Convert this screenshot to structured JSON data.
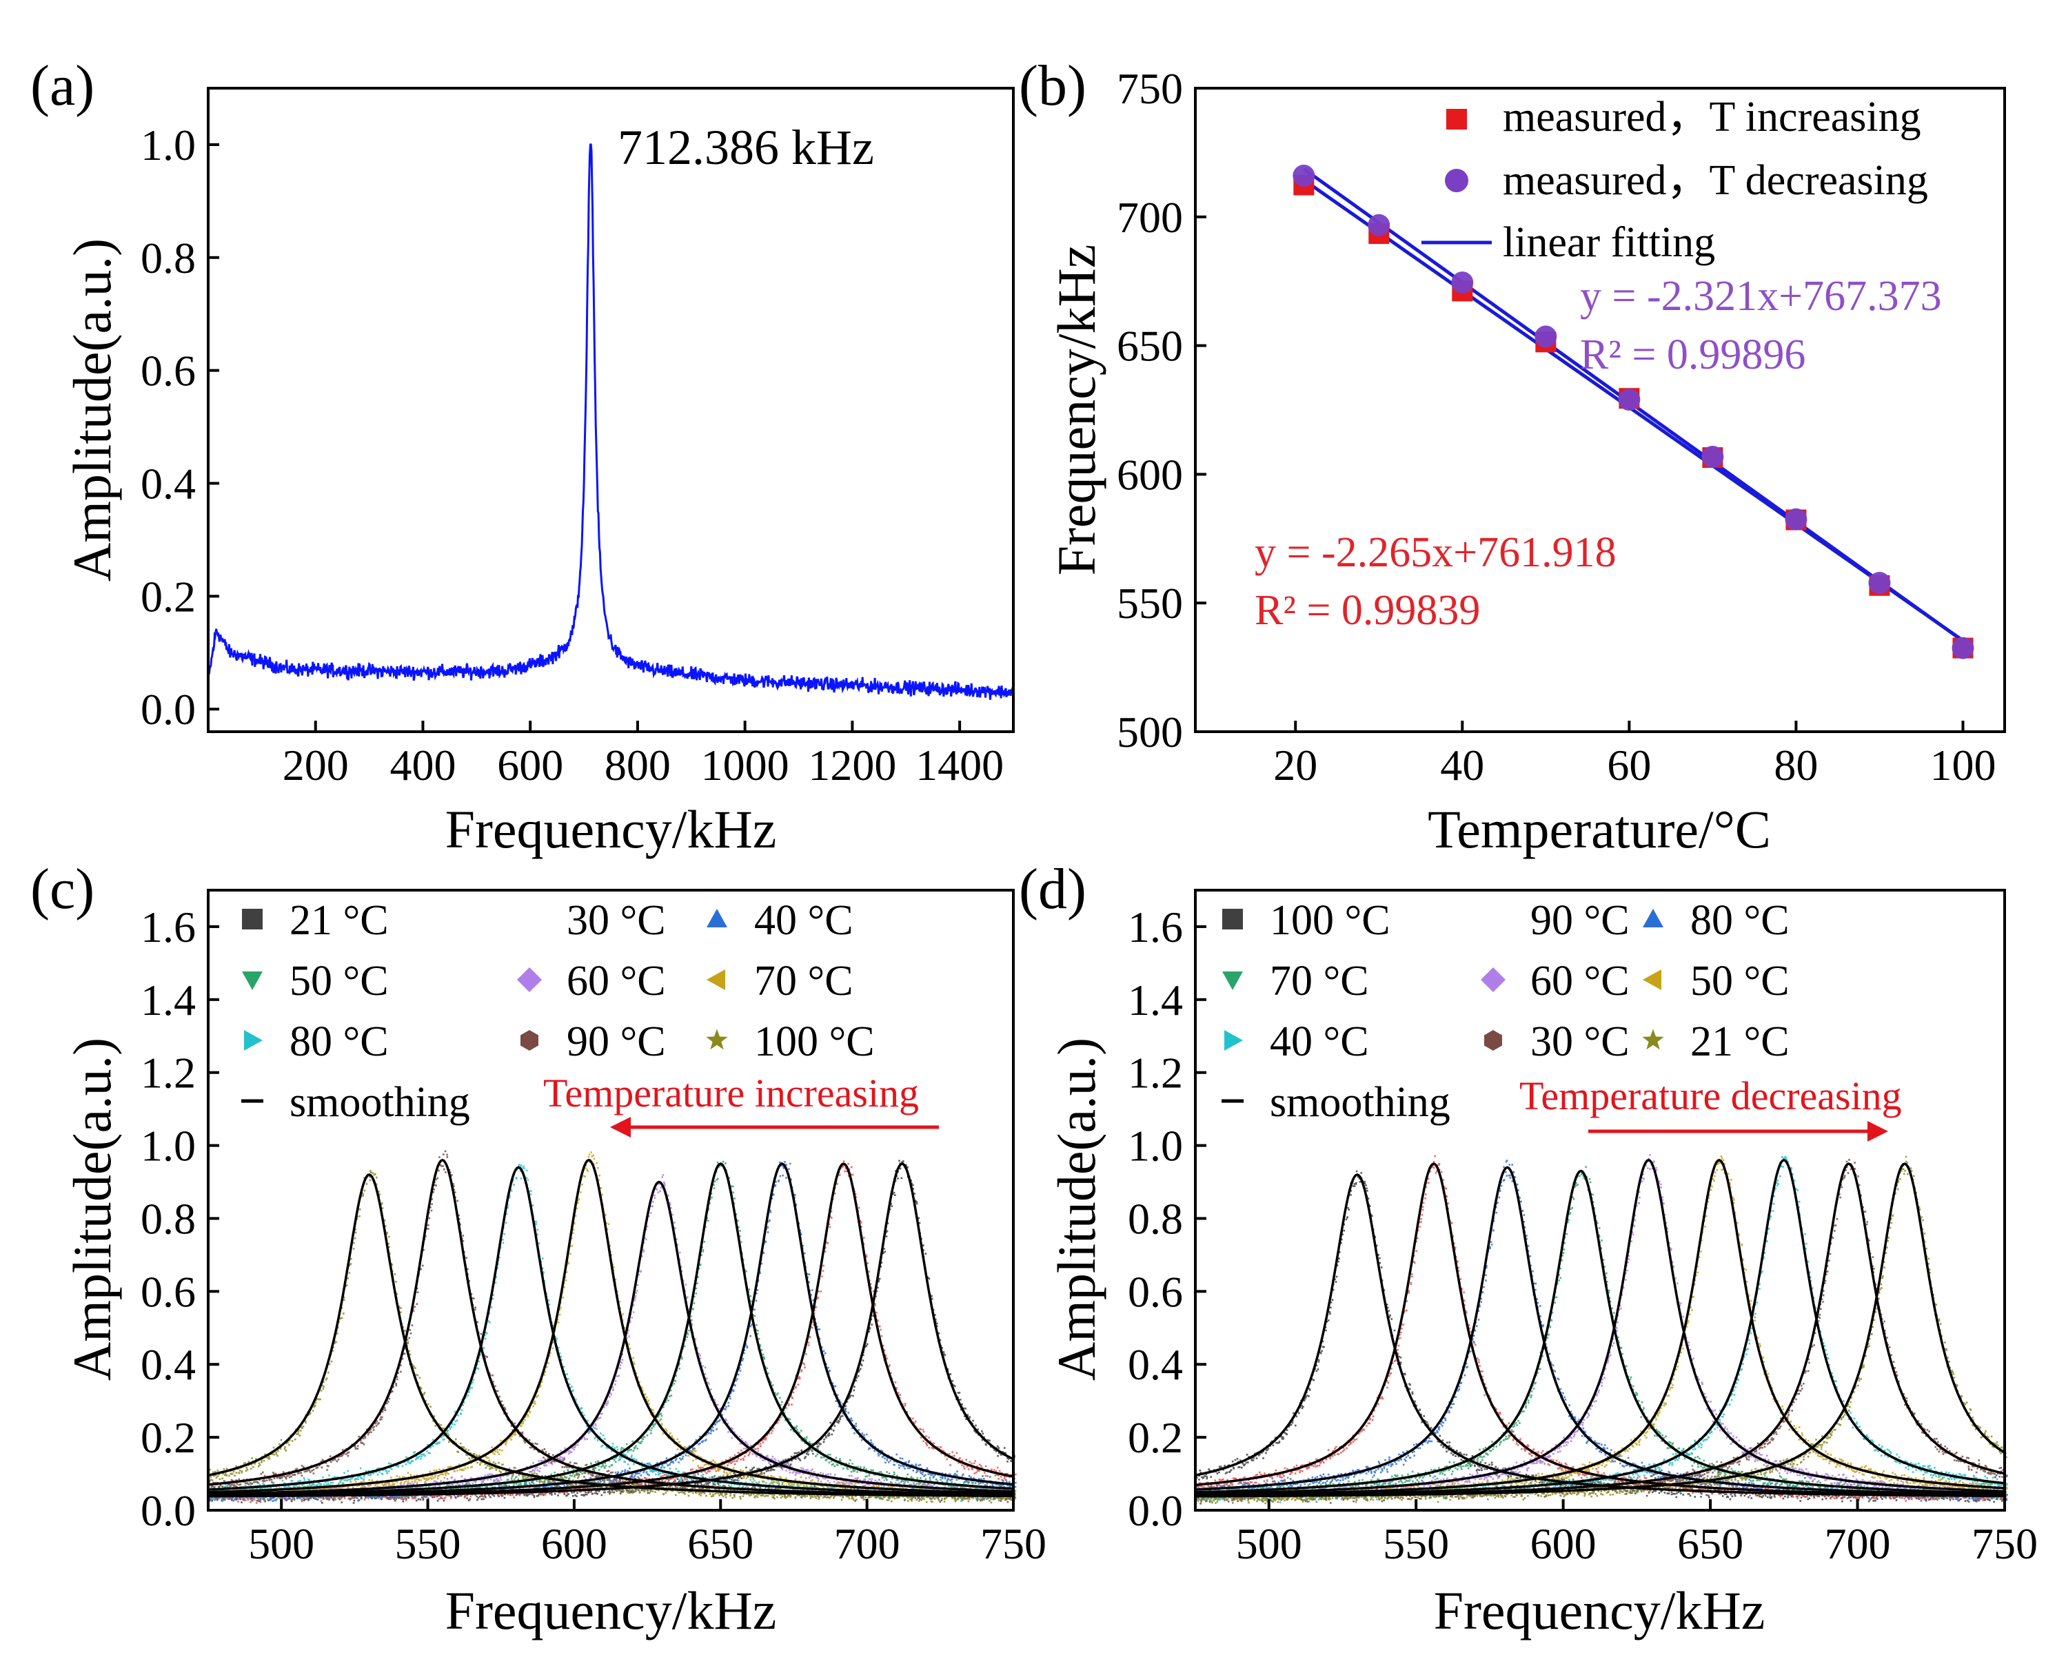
{
  "colors": {
    "spectrum_blue": "#0a14ff",
    "fit_blue": "#1a1ad8",
    "inc_red": "#e41a1c",
    "dec_purple": "#7a3fc4",
    "eq_red": "#e0242a",
    "eq_purple": "#8e4fc8",
    "arrow_red": "#e3141c",
    "axis": "#000000"
  },
  "chart_data": [
    {
      "id": "a",
      "panel_label": "(a)",
      "type": "line",
      "xlabel": "Frequency/kHz",
      "ylabel": "Amplitude(a.u.)",
      "xlim": [
        0,
        1500
      ],
      "ylim": [
        -0.04,
        1.1
      ],
      "xticks": [
        200,
        400,
        600,
        800,
        1000,
        1200,
        1400
      ],
      "xtick_labels": [
        "200",
        "400",
        "600",
        "800",
        "1000",
        "1200",
        "1400"
      ],
      "yticks": [
        0.0,
        0.2,
        0.4,
        0.6,
        0.8,
        1.0
      ],
      "ytick_labels": [
        "0.0",
        "0.2",
        "0.4",
        "0.6",
        "0.8",
        "1.0"
      ],
      "annotation": "712.386 kHz",
      "series": [
        {
          "name": "spectrum",
          "peak_frequency": 712.386,
          "peak_amplitude": 1.0,
          "baseline_points": [
            [
              0,
              0.05
            ],
            [
              15,
              0.14
            ],
            [
              40,
              0.1
            ],
            [
              150,
              0.07
            ],
            [
              400,
              0.065
            ],
            [
              550,
              0.065
            ],
            [
              650,
              0.08
            ],
            [
              1000,
              0.05
            ],
            [
              1500,
              0.03
            ]
          ],
          "color": "#0a14ff"
        }
      ]
    },
    {
      "id": "b",
      "panel_label": "(b)",
      "type": "scatter",
      "xlabel": "Temperature/°C",
      "ylabel": "Frequency/kHz",
      "xlim": [
        8,
        105
      ],
      "ylim": [
        500,
        750
      ],
      "xticks": [
        20,
        40,
        60,
        80,
        100
      ],
      "xtick_labels": [
        "20",
        "40",
        "60",
        "80",
        "100"
      ],
      "yticks": [
        500,
        550,
        600,
        650,
        700,
        750
      ],
      "ytick_labels": [
        "500",
        "550",
        "600",
        "650",
        "700",
        "750"
      ],
      "legend": [
        {
          "label": "measured，T increasing",
          "marker": "square",
          "color": "#e41a1c"
        },
        {
          "label": "measured，T decreasing",
          "marker": "circle",
          "color": "#7a3fc4"
        },
        {
          "label": "linear fitting",
          "marker": "line",
          "color": "#1a1ad8"
        }
      ],
      "equations": [
        {
          "text": "y = -2.321x+767.373",
          "color": "#8e4fc8"
        },
        {
          "text": "R² = 0.99896",
          "color": "#8e4fc8"
        },
        {
          "text": "y = -2.265x+761.918",
          "color": "#e0242a"
        },
        {
          "text": "R² = 0.99839",
          "color": "#e0242a"
        }
      ],
      "series": [
        {
          "name": "measured，T increasing",
          "x": [
            21,
            30,
            40,
            50,
            60,
            70,
            80,
            90,
            100
          ],
          "y": [
            712.4,
            693.5,
            671.2,
            651.4,
            629.5,
            606.5,
            582.3,
            556.8,
            532.5
          ]
        },
        {
          "name": "measured，T decreasing",
          "x": [
            21,
            30,
            40,
            50,
            60,
            70,
            80,
            90,
            100
          ],
          "y": [
            716.0,
            696.8,
            674.5,
            653.5,
            629.0,
            606.8,
            582.5,
            557.8,
            532.5
          ]
        },
        {
          "name": "fit increasing",
          "slope": -2.265,
          "intercept": 761.918,
          "x_range": [
            21,
            100
          ]
        },
        {
          "name": "fit decreasing",
          "slope": -2.321,
          "intercept": 767.373,
          "x_range": [
            21,
            100
          ]
        }
      ]
    },
    {
      "id": "c",
      "panel_label": "(c)",
      "type": "line",
      "xlabel": "Frequency/kHz",
      "ylabel": "Amplitude(a.u.)",
      "xlim": [
        475,
        750
      ],
      "ylim": [
        0,
        1.7
      ],
      "xticks": [
        500,
        550,
        600,
        650,
        700,
        750
      ],
      "xtick_labels": [
        "500",
        "550",
        "600",
        "650",
        "700",
        "750"
      ],
      "yticks": [
        0.0,
        0.2,
        0.4,
        0.6,
        0.8,
        1.0,
        1.2,
        1.4,
        1.6
      ],
      "ytick_labels": [
        "0.0",
        "0.2",
        "0.4",
        "0.6",
        "0.8",
        "1.0",
        "1.2",
        "1.4",
        "1.6"
      ],
      "arrow_text": "Temperature increasing",
      "arrow_direction": "left",
      "legend": [
        {
          "label": "21 °C",
          "marker": "square",
          "color": "#404040"
        },
        {
          "label": "30 °C",
          "marker": "circle",
          "color": "#e8504f"
        },
        {
          "label": "40 °C",
          "marker": "triangle-up",
          "color": "#2a6fd8"
        },
        {
          "label": "50 °C",
          "marker": "triangle-down",
          "color": "#2aa56a"
        },
        {
          "label": "60 °C",
          "marker": "diamond",
          "color": "#b07ee8"
        },
        {
          "label": "70 °C",
          "marker": "triangle-left",
          "color": "#c8a218"
        },
        {
          "label": "80 °C",
          "marker": "triangle-right",
          "color": "#22c2cc"
        },
        {
          "label": "90 °C",
          "marker": "hexagon",
          "color": "#7a4a44"
        },
        {
          "label": "100 °C",
          "marker": "star",
          "color": "#8a8a1e"
        },
        {
          "label": "smoothing",
          "marker": "line",
          "color": "#000000"
        }
      ],
      "series": [
        {
          "name": "21 °C",
          "peak": 712,
          "amplitude": 0.95,
          "color": "#404040"
        },
        {
          "name": "30 °C",
          "peak": 692,
          "amplitude": 0.95,
          "color": "#e8504f"
        },
        {
          "name": "40 °C",
          "peak": 671,
          "amplitude": 0.95,
          "color": "#2a6fd8"
        },
        {
          "name": "50 °C",
          "peak": 650,
          "amplitude": 0.95,
          "color": "#2aa56a"
        },
        {
          "name": "60 °C",
          "peak": 629,
          "amplitude": 0.9,
          "color": "#b07ee8"
        },
        {
          "name": "70 °C",
          "peak": 605,
          "amplitude": 0.96,
          "color": "#c8a218"
        },
        {
          "name": "80 °C",
          "peak": 581,
          "amplitude": 0.94,
          "color": "#22c2cc"
        },
        {
          "name": "90 °C",
          "peak": 555,
          "amplitude": 0.96,
          "color": "#7a4a44"
        },
        {
          "name": "100 °C",
          "peak": 530,
          "amplitude": 0.92,
          "color": "#8a8a1e"
        }
      ]
    },
    {
      "id": "d",
      "panel_label": "(d)",
      "type": "line",
      "xlabel": "Frequency/kHz",
      "ylabel": "Amplitude(a.u.)",
      "xlim": [
        475,
        750
      ],
      "ylim": [
        0,
        1.7
      ],
      "xticks": [
        500,
        550,
        600,
        650,
        700,
        750
      ],
      "xtick_labels": [
        "500",
        "550",
        "600",
        "650",
        "700",
        "750"
      ],
      "yticks": [
        0.0,
        0.2,
        0.4,
        0.6,
        0.8,
        1.0,
        1.2,
        1.4,
        1.6
      ],
      "ytick_labels": [
        "0.0",
        "0.2",
        "0.4",
        "0.6",
        "0.8",
        "1.0",
        "1.2",
        "1.4",
        "1.6"
      ],
      "arrow_text": "Temperature decreasing",
      "arrow_direction": "right",
      "legend": [
        {
          "label": "100 °C",
          "marker": "square",
          "color": "#404040"
        },
        {
          "label": "90 °C",
          "marker": "circle",
          "color": "#e8504f"
        },
        {
          "label": "80 °C",
          "marker": "triangle-up",
          "color": "#2a6fd8"
        },
        {
          "label": "70 °C",
          "marker": "triangle-down",
          "color": "#2aa56a"
        },
        {
          "label": "60 °C",
          "marker": "diamond",
          "color": "#b07ee8"
        },
        {
          "label": "50 °C",
          "marker": "triangle-left",
          "color": "#c8a218"
        },
        {
          "label": "40 °C",
          "marker": "triangle-right",
          "color": "#22c2cc"
        },
        {
          "label": "30 °C",
          "marker": "hexagon",
          "color": "#7a4a44"
        },
        {
          "label": "21 °C",
          "marker": "star",
          "color": "#8a8a1e"
        },
        {
          "label": "smoothing",
          "marker": "line",
          "color": "#000000"
        }
      ],
      "series": [
        {
          "name": "100 °C",
          "peak": 530,
          "amplitude": 0.92,
          "color": "#404040"
        },
        {
          "name": "90 °C",
          "peak": 556,
          "amplitude": 0.95,
          "color": "#e8504f"
        },
        {
          "name": "80 °C",
          "peak": 581,
          "amplitude": 0.94,
          "color": "#2a6fd8"
        },
        {
          "name": "70 °C",
          "peak": 606,
          "amplitude": 0.93,
          "color": "#2aa56a"
        },
        {
          "name": "60 °C",
          "peak": 629,
          "amplitude": 0.96,
          "color": "#b07ee8"
        },
        {
          "name": "50 °C",
          "peak": 653,
          "amplitude": 0.96,
          "color": "#c8a218"
        },
        {
          "name": "40 °C",
          "peak": 675,
          "amplitude": 0.96,
          "color": "#22c2cc"
        },
        {
          "name": "30 °C",
          "peak": 697,
          "amplitude": 0.95,
          "color": "#7a4a44"
        },
        {
          "name": "21 °C",
          "peak": 716,
          "amplitude": 0.95,
          "color": "#8a8a1e"
        }
      ]
    }
  ]
}
